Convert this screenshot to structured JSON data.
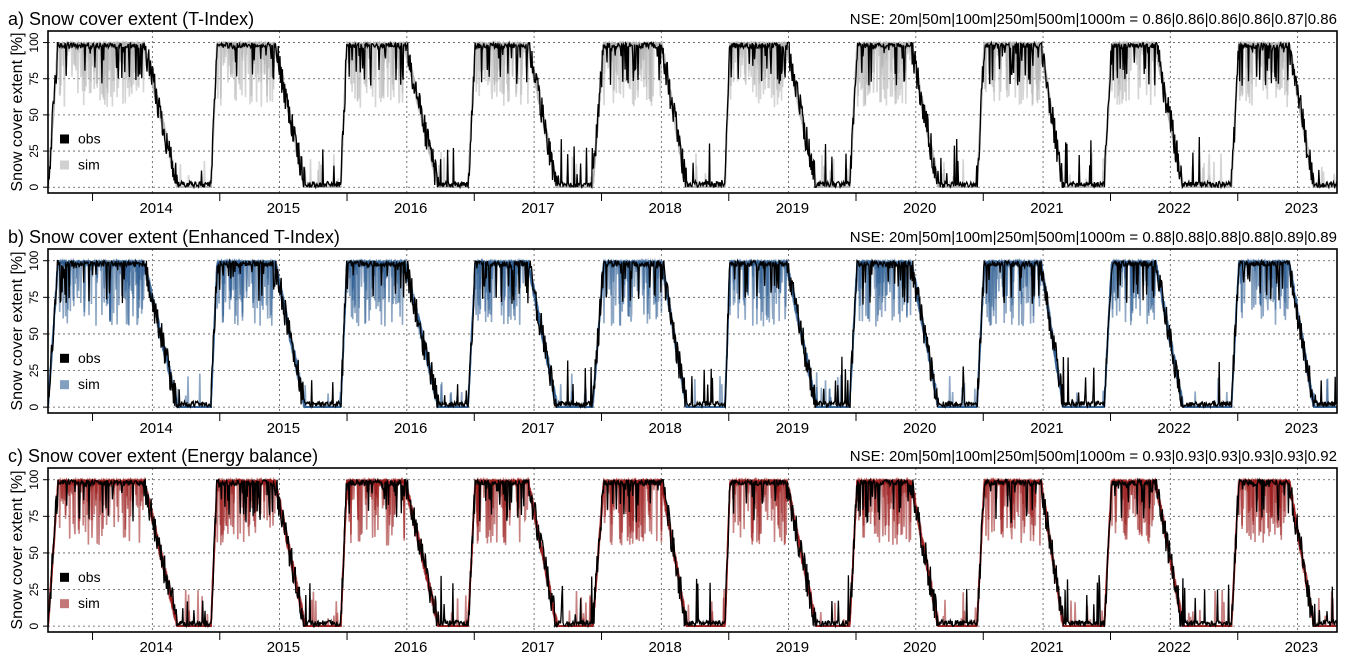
{
  "chart_data": [
    {
      "type": "line",
      "title": "a) Snow cover extent (T-Index)",
      "annotation": "NSE: 20m|50m|100m|250m|500m|1000m = 0.86|0.86|0.86|0.86|0.87|0.86",
      "ylabel": "Snow cover extent [%]",
      "yticks": [
        0,
        25,
        50,
        75,
        100
      ],
      "ylim": [
        -4,
        108
      ],
      "xlim": [
        2013.6,
        2023.73
      ],
      "xtick_labels": [
        "2014",
        "2015",
        "2016",
        "2017",
        "2018",
        "2019",
        "2020",
        "2021",
        "2022",
        "2023"
      ],
      "grid": true,
      "legend": {
        "position": "left",
        "entries": [
          "obs",
          "sim"
        ]
      },
      "series": [
        {
          "name": "obs",
          "color": "#000000"
        },
        {
          "name": "sim",
          "color": "#b3b3b3"
        }
      ],
      "seasons": [
        {
          "start": 2013.6,
          "full": 2013.68,
          "melt_start": 2014.35,
          "melt_end": 2014.62,
          "end": 2014.88
        },
        {
          "start": 2014.88,
          "full": 2014.93,
          "melt_start": 2015.38,
          "melt_end": 2015.62,
          "end": 2015.9
        },
        {
          "start": 2015.9,
          "full": 2015.95,
          "melt_start": 2016.4,
          "melt_end": 2016.67,
          "end": 2016.9
        },
        {
          "start": 2016.9,
          "full": 2016.96,
          "melt_start": 2017.37,
          "melt_end": 2017.6,
          "end": 2017.88
        },
        {
          "start": 2017.88,
          "full": 2017.97,
          "melt_start": 2018.42,
          "melt_end": 2018.62,
          "end": 2018.92
        },
        {
          "start": 2018.92,
          "full": 2018.96,
          "melt_start": 2019.4,
          "melt_end": 2019.64,
          "end": 2019.9
        },
        {
          "start": 2019.9,
          "full": 2019.96,
          "melt_start": 2020.38,
          "melt_end": 2020.6,
          "end": 2020.9
        },
        {
          "start": 2020.9,
          "full": 2020.96,
          "melt_start": 2021.4,
          "melt_end": 2021.58,
          "end": 2021.9
        },
        {
          "start": 2021.9,
          "full": 2021.96,
          "melt_start": 2022.3,
          "melt_end": 2022.52,
          "end": 2022.9
        },
        {
          "start": 2022.9,
          "full": 2022.96,
          "melt_start": 2023.35,
          "melt_end": 2023.55,
          "end": 2023.73
        }
      ]
    },
    {
      "type": "line",
      "title": "b) Snow cover extent (Enhanced T-Index)",
      "annotation": "NSE: 20m|50m|100m|250m|500m|1000m = 0.88|0.88|0.88|0.88|0.89|0.89",
      "ylabel": "Snow cover extent [%]",
      "yticks": [
        0,
        25,
        50,
        75,
        100
      ],
      "ylim": [
        -4,
        108
      ],
      "xlim": [
        2013.6,
        2023.73
      ],
      "xtick_labels": [
        "2014",
        "2015",
        "2016",
        "2017",
        "2018",
        "2019",
        "2020",
        "2021",
        "2022",
        "2023"
      ],
      "grid": true,
      "legend": {
        "position": "left",
        "entries": [
          "obs",
          "sim"
        ]
      },
      "series": [
        {
          "name": "obs",
          "color": "#000000"
        },
        {
          "name": "sim",
          "color": "#2f5f94"
        }
      ],
      "seasons": [
        {
          "start": 2013.6,
          "full": 2013.68,
          "melt_start": 2014.35,
          "melt_end": 2014.62,
          "end": 2014.88
        },
        {
          "start": 2014.88,
          "full": 2014.93,
          "melt_start": 2015.38,
          "melt_end": 2015.62,
          "end": 2015.9
        },
        {
          "start": 2015.9,
          "full": 2015.95,
          "melt_start": 2016.4,
          "melt_end": 2016.67,
          "end": 2016.9
        },
        {
          "start": 2016.9,
          "full": 2016.96,
          "melt_start": 2017.37,
          "melt_end": 2017.6,
          "end": 2017.88
        },
        {
          "start": 2017.88,
          "full": 2017.97,
          "melt_start": 2018.42,
          "melt_end": 2018.62,
          "end": 2018.92
        },
        {
          "start": 2018.92,
          "full": 2018.96,
          "melt_start": 2019.4,
          "melt_end": 2019.64,
          "end": 2019.9
        },
        {
          "start": 2019.9,
          "full": 2019.96,
          "melt_start": 2020.38,
          "melt_end": 2020.6,
          "end": 2020.9
        },
        {
          "start": 2020.9,
          "full": 2020.96,
          "melt_start": 2021.4,
          "melt_end": 2021.58,
          "end": 2021.9
        },
        {
          "start": 2021.9,
          "full": 2021.96,
          "melt_start": 2022.3,
          "melt_end": 2022.52,
          "end": 2022.9
        },
        {
          "start": 2022.9,
          "full": 2022.96,
          "melt_start": 2023.35,
          "melt_end": 2023.55,
          "end": 2023.73
        }
      ]
    },
    {
      "type": "line",
      "title": "c) Snow cover extent (Energy balance)",
      "annotation": "NSE: 20m|50m|100m|250m|500m|1000m = 0.93|0.93|0.93|0.93|0.93|0.92",
      "ylabel": "Snow cover extent [%]",
      "yticks": [
        0,
        25,
        50,
        75,
        100
      ],
      "ylim": [
        -4,
        108
      ],
      "xlim": [
        2013.6,
        2023.73
      ],
      "xtick_labels": [
        "2014",
        "2015",
        "2016",
        "2017",
        "2018",
        "2019",
        "2020",
        "2021",
        "2022",
        "2023"
      ],
      "grid": true,
      "legend": {
        "position": "left",
        "entries": [
          "obs",
          "sim"
        ]
      },
      "series": [
        {
          "name": "obs",
          "color": "#000000"
        },
        {
          "name": "sim",
          "color": "#9b1c1c"
        }
      ],
      "seasons": [
        {
          "start": 2013.6,
          "full": 2013.68,
          "melt_start": 2014.35,
          "melt_end": 2014.62,
          "end": 2014.88
        },
        {
          "start": 2014.88,
          "full": 2014.93,
          "melt_start": 2015.38,
          "melt_end": 2015.62,
          "end": 2015.9
        },
        {
          "start": 2015.9,
          "full": 2015.95,
          "melt_start": 2016.4,
          "melt_end": 2016.67,
          "end": 2016.9
        },
        {
          "start": 2016.9,
          "full": 2016.96,
          "melt_start": 2017.37,
          "melt_end": 2017.6,
          "end": 2017.88
        },
        {
          "start": 2017.88,
          "full": 2017.97,
          "melt_start": 2018.42,
          "melt_end": 2018.62,
          "end": 2018.92
        },
        {
          "start": 2018.92,
          "full": 2018.96,
          "melt_start": 2019.4,
          "melt_end": 2019.64,
          "end": 2019.9
        },
        {
          "start": 2019.9,
          "full": 2019.96,
          "melt_start": 2020.38,
          "melt_end": 2020.6,
          "end": 2020.9
        },
        {
          "start": 2020.9,
          "full": 2020.96,
          "melt_start": 2021.4,
          "melt_end": 2021.58,
          "end": 2021.9
        },
        {
          "start": 2021.9,
          "full": 2021.96,
          "melt_start": 2022.3,
          "melt_end": 2022.52,
          "end": 2022.9
        },
        {
          "start": 2022.9,
          "full": 2022.96,
          "melt_start": 2023.35,
          "melt_end": 2023.55,
          "end": 2023.73
        }
      ]
    }
  ]
}
